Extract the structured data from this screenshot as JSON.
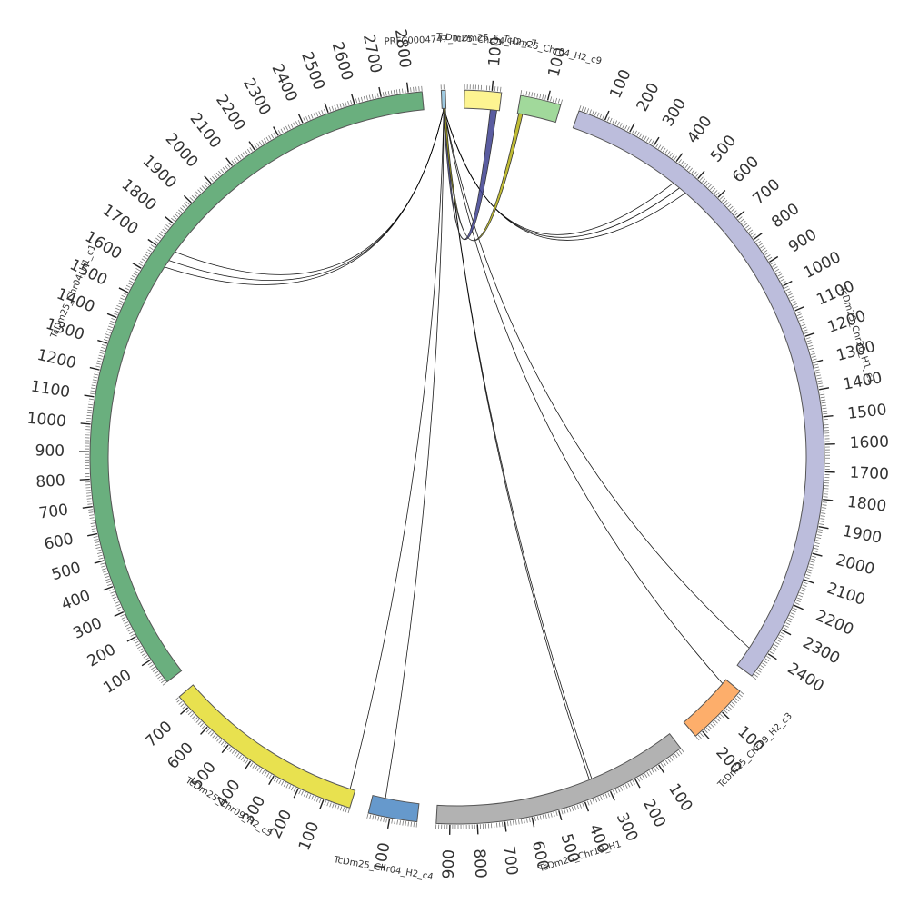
{
  "diagram": {
    "type": "circos",
    "segments": [
      {
        "name": "PRFC0004747_TcDm25_c",
        "size": 15,
        "color": "#9ecae1",
        "tick_labels": []
      },
      {
        "name": "TcDm25_Chr04_H2_c7",
        "size": 135,
        "color": "#fdf491",
        "tick_labels": [
          "100"
        ]
      },
      {
        "name": "TcDm25_Chr04_H2_c9",
        "size": 150,
        "color": "#a1d99b",
        "tick_labels": [
          "100"
        ]
      },
      {
        "name": "TcDm25_Chr30_H1_c1",
        "size": 2500,
        "color": "#bcbddc",
        "tick_labels": [
          "100",
          "200",
          "300",
          "400",
          "500",
          "600",
          "700",
          "800",
          "900",
          "1000",
          "1100",
          "1200",
          "1300",
          "1400",
          "1500",
          "1600",
          "1700",
          "1800",
          "1900",
          "2000",
          "2100",
          "2200",
          "2300",
          "2400"
        ]
      },
      {
        "name": "TcDm25_Chr19_H2_c3",
        "size": 230,
        "color": "#fdae6b",
        "tick_labels": [
          "100",
          "200"
        ]
      },
      {
        "name": "TcDm25_Chr19_H1",
        "size": 950,
        "color": "#b2b2b2",
        "tick_labels": [
          "100",
          "200",
          "300",
          "400",
          "500",
          "600",
          "700",
          "800",
          "900"
        ]
      },
      {
        "name": "TcDm25_Chr04_H2_c4",
        "size": 180,
        "color": "#6699cc",
        "tick_labels": [
          "100"
        ]
      },
      {
        "name": "TcDm25_Chr09_H2_c5",
        "size": 750,
        "color": "#e8e14f",
        "tick_labels": [
          "100",
          "200",
          "300",
          "400",
          "500",
          "600",
          "700"
        ]
      },
      {
        "name": "TcDm25_Chr04_H1_c1",
        "size": 2850,
        "color": "#6aaf7e",
        "tick_labels": [
          "100",
          "200",
          "300",
          "400",
          "500",
          "600",
          "700",
          "800",
          "900",
          "1000",
          "1100",
          "1200",
          "1300",
          "1400",
          "1500",
          "1600",
          "1700",
          "1800",
          "1900",
          "2000",
          "2100",
          "2200",
          "2300",
          "2400",
          "2500",
          "2600",
          "2700",
          "2800"
        ]
      }
    ],
    "links": [
      {
        "from": "PRFC0004747_TcDm25_c",
        "from_pos": 7,
        "to": "TcDm25_Chr04_H1_c1",
        "to_pos": 1720,
        "color": "#000000"
      },
      {
        "from": "PRFC0004747_TcDm25_c",
        "from_pos": 7,
        "to": "TcDm25_Chr04_H1_c1",
        "to_pos": 1680,
        "color": "#000000"
      },
      {
        "from": "PRFC0004747_TcDm25_c",
        "from_pos": 7,
        "to": "TcDm25_Chr04_H1_c1",
        "to_pos": 1650,
        "color": "#000000"
      },
      {
        "from": "PRFC0004747_TcDm25_c",
        "from_pos": 7,
        "to": "TcDm25_Chr30_H1_c1",
        "to_pos": 500,
        "color": "#000000"
      },
      {
        "from": "PRFC0004747_TcDm25_c",
        "from_pos": 7,
        "to": "TcDm25_Chr30_H1_c1",
        "to_pos": 470,
        "color": "#000000"
      },
      {
        "from": "PRFC0004747_TcDm25_c",
        "from_pos": 7,
        "to": "TcDm25_Chr30_H1_c1",
        "to_pos": 440,
        "color": "#000000"
      },
      {
        "from": "PRFC0004747_TcDm25_c",
        "from_pos": 7,
        "to": "TcDm25_Chr09_H2_c5",
        "to_pos": 20,
        "color": "#000000"
      },
      {
        "from": "PRFC0004747_TcDm25_c",
        "from_pos": 7,
        "to": "TcDm25_Chr04_H2_c4",
        "to_pos": 130,
        "color": "#000000"
      },
      {
        "from": "PRFC0004747_TcDm25_c",
        "from_pos": 7,
        "to": "TcDm25_Chr19_H1",
        "to_pos": 345,
        "color": "#000000"
      },
      {
        "from": "PRFC0004747_TcDm25_c",
        "from_pos": 7,
        "to": "TcDm25_Chr19_H1",
        "to_pos": 355,
        "color": "#000000"
      },
      {
        "from": "PRFC0004747_TcDm25_c",
        "from_pos": 7,
        "to": "TcDm25_Chr19_H2_c3",
        "to_pos": 20,
        "color": "#000000"
      },
      {
        "from": "PRFC0004747_TcDm25_c",
        "from_pos": 7,
        "to": "TcDm25_Chr30_H1_c1",
        "to_pos": 2420,
        "color": "#000000"
      }
    ],
    "bands": [
      {
        "from": "TcDm25_Chr04_H2_c7",
        "from_range": [
          100,
          125
        ],
        "to": "PRFC0004747_TcDm25_c",
        "to_range": [
          4,
          12
        ],
        "color": "#3d3f8f"
      },
      {
        "from": "TcDm25_Chr04_H2_c9",
        "from_range": [
          5,
          20
        ],
        "to": "PRFC0004747_TcDm25_c",
        "to_range": [
          6,
          13
        ],
        "color": "#b5b012"
      }
    ]
  }
}
